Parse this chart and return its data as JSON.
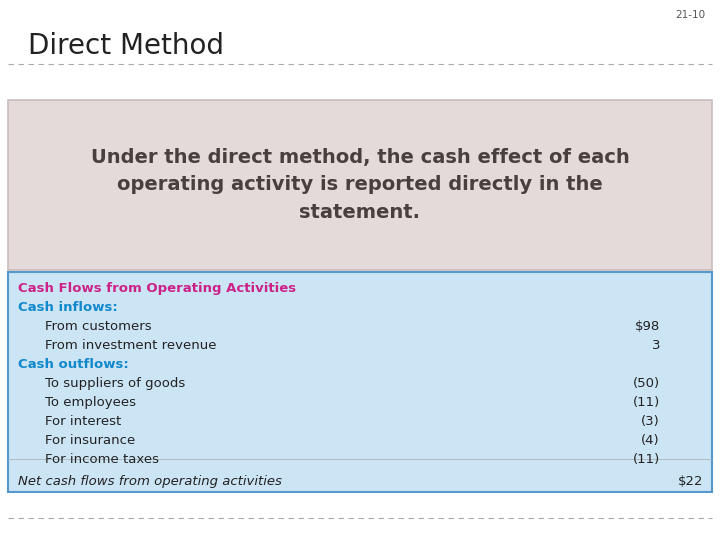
{
  "slide_number": "21-10",
  "title": "Direct Method",
  "highlight_text": "Under the direct method, the cash effect of each\noperating activity is reported directly in the\nstatement.",
  "highlight_bg": "#e4dada",
  "highlight_border": "#ccbbbb",
  "highlight_text_color": "#4a3f3f",
  "table_bg": "#cce5f5",
  "table_border": "#5599cc",
  "table_header": "Cash Flows from Operating Activities",
  "table_header_color": "#cc2288",
  "inflows_label": "Cash inflows:",
  "inflows_color": "#1188cc",
  "outflows_label": "Cash outflows:",
  "outflows_color": "#1188cc",
  "inflow_items": [
    {
      "label": "From customers",
      "value": "$98"
    },
    {
      "label": "From investment revenue",
      "value": "3"
    }
  ],
  "outflow_items": [
    {
      "label": "To suppliers of goods",
      "value": "(50)"
    },
    {
      "label": "To employees",
      "value": "(11)"
    },
    {
      "label": "For interest",
      "value": "(3)"
    },
    {
      "label": "For insurance",
      "value": "(4)"
    },
    {
      "label": "For income taxes",
      "value": "(11)"
    }
  ],
  "net_label": "Net cash flows from operating activities",
  "net_value": "$22",
  "text_color": "#222222",
  "dash_color": "#aaaaaa",
  "bg_color": "#ffffff",
  "title_fontsize": 20,
  "highlight_fontsize": 14,
  "table_fontsize": 9.5
}
